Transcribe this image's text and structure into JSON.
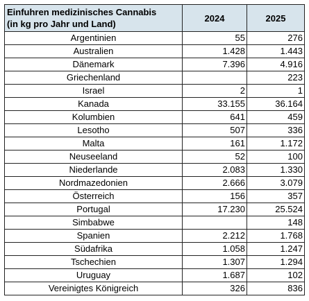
{
  "table": {
    "title_line1": "Einfuhren medizinisches Cannabis",
    "title_line2": "(in kg pro Jahr und Land)",
    "year1": "2024",
    "year2": "2025",
    "rows": [
      {
        "country": "Argentinien",
        "v2024": "55",
        "v2025": "276"
      },
      {
        "country": "Australien",
        "v2024": "1.428",
        "v2025": "1.443"
      },
      {
        "country": "Dänemark",
        "v2024": "7.396",
        "v2025": "4.916"
      },
      {
        "country": "Griechenland",
        "v2024": "",
        "v2025": "223"
      },
      {
        "country": "Israel",
        "v2024": "2",
        "v2025": "1"
      },
      {
        "country": "Kanada",
        "v2024": "33.155",
        "v2025": "36.164"
      },
      {
        "country": "Kolumbien",
        "v2024": "641",
        "v2025": "459"
      },
      {
        "country": "Lesotho",
        "v2024": "507",
        "v2025": "336"
      },
      {
        "country": "Malta",
        "v2024": "161",
        "v2025": "1.172"
      },
      {
        "country": "Neuseeland",
        "v2024": "52",
        "v2025": "100"
      },
      {
        "country": "Niederlande",
        "v2024": "2.083",
        "v2025": "1.330"
      },
      {
        "country": "Nordmazedonien",
        "v2024": "2.666",
        "v2025": "3.079"
      },
      {
        "country": "Österreich",
        "v2024": "156",
        "v2025": "357"
      },
      {
        "country": "Portugal",
        "v2024": "17.230",
        "v2025": "25.524"
      },
      {
        "country": "Simbabwe",
        "v2024": "",
        "v2025": "148"
      },
      {
        "country": "Spanien",
        "v2024": "2.212",
        "v2025": "1.768"
      },
      {
        "country": "Südafrika",
        "v2024": "1.058",
        "v2025": "1.247"
      },
      {
        "country": "Tschechien",
        "v2024": "1.307",
        "v2025": "1.294"
      },
      {
        "country": "Uruguay",
        "v2024": "1.687",
        "v2025": "102"
      },
      {
        "country": "Vereinigtes Königreich",
        "v2024": "326",
        "v2025": "836"
      }
    ]
  }
}
